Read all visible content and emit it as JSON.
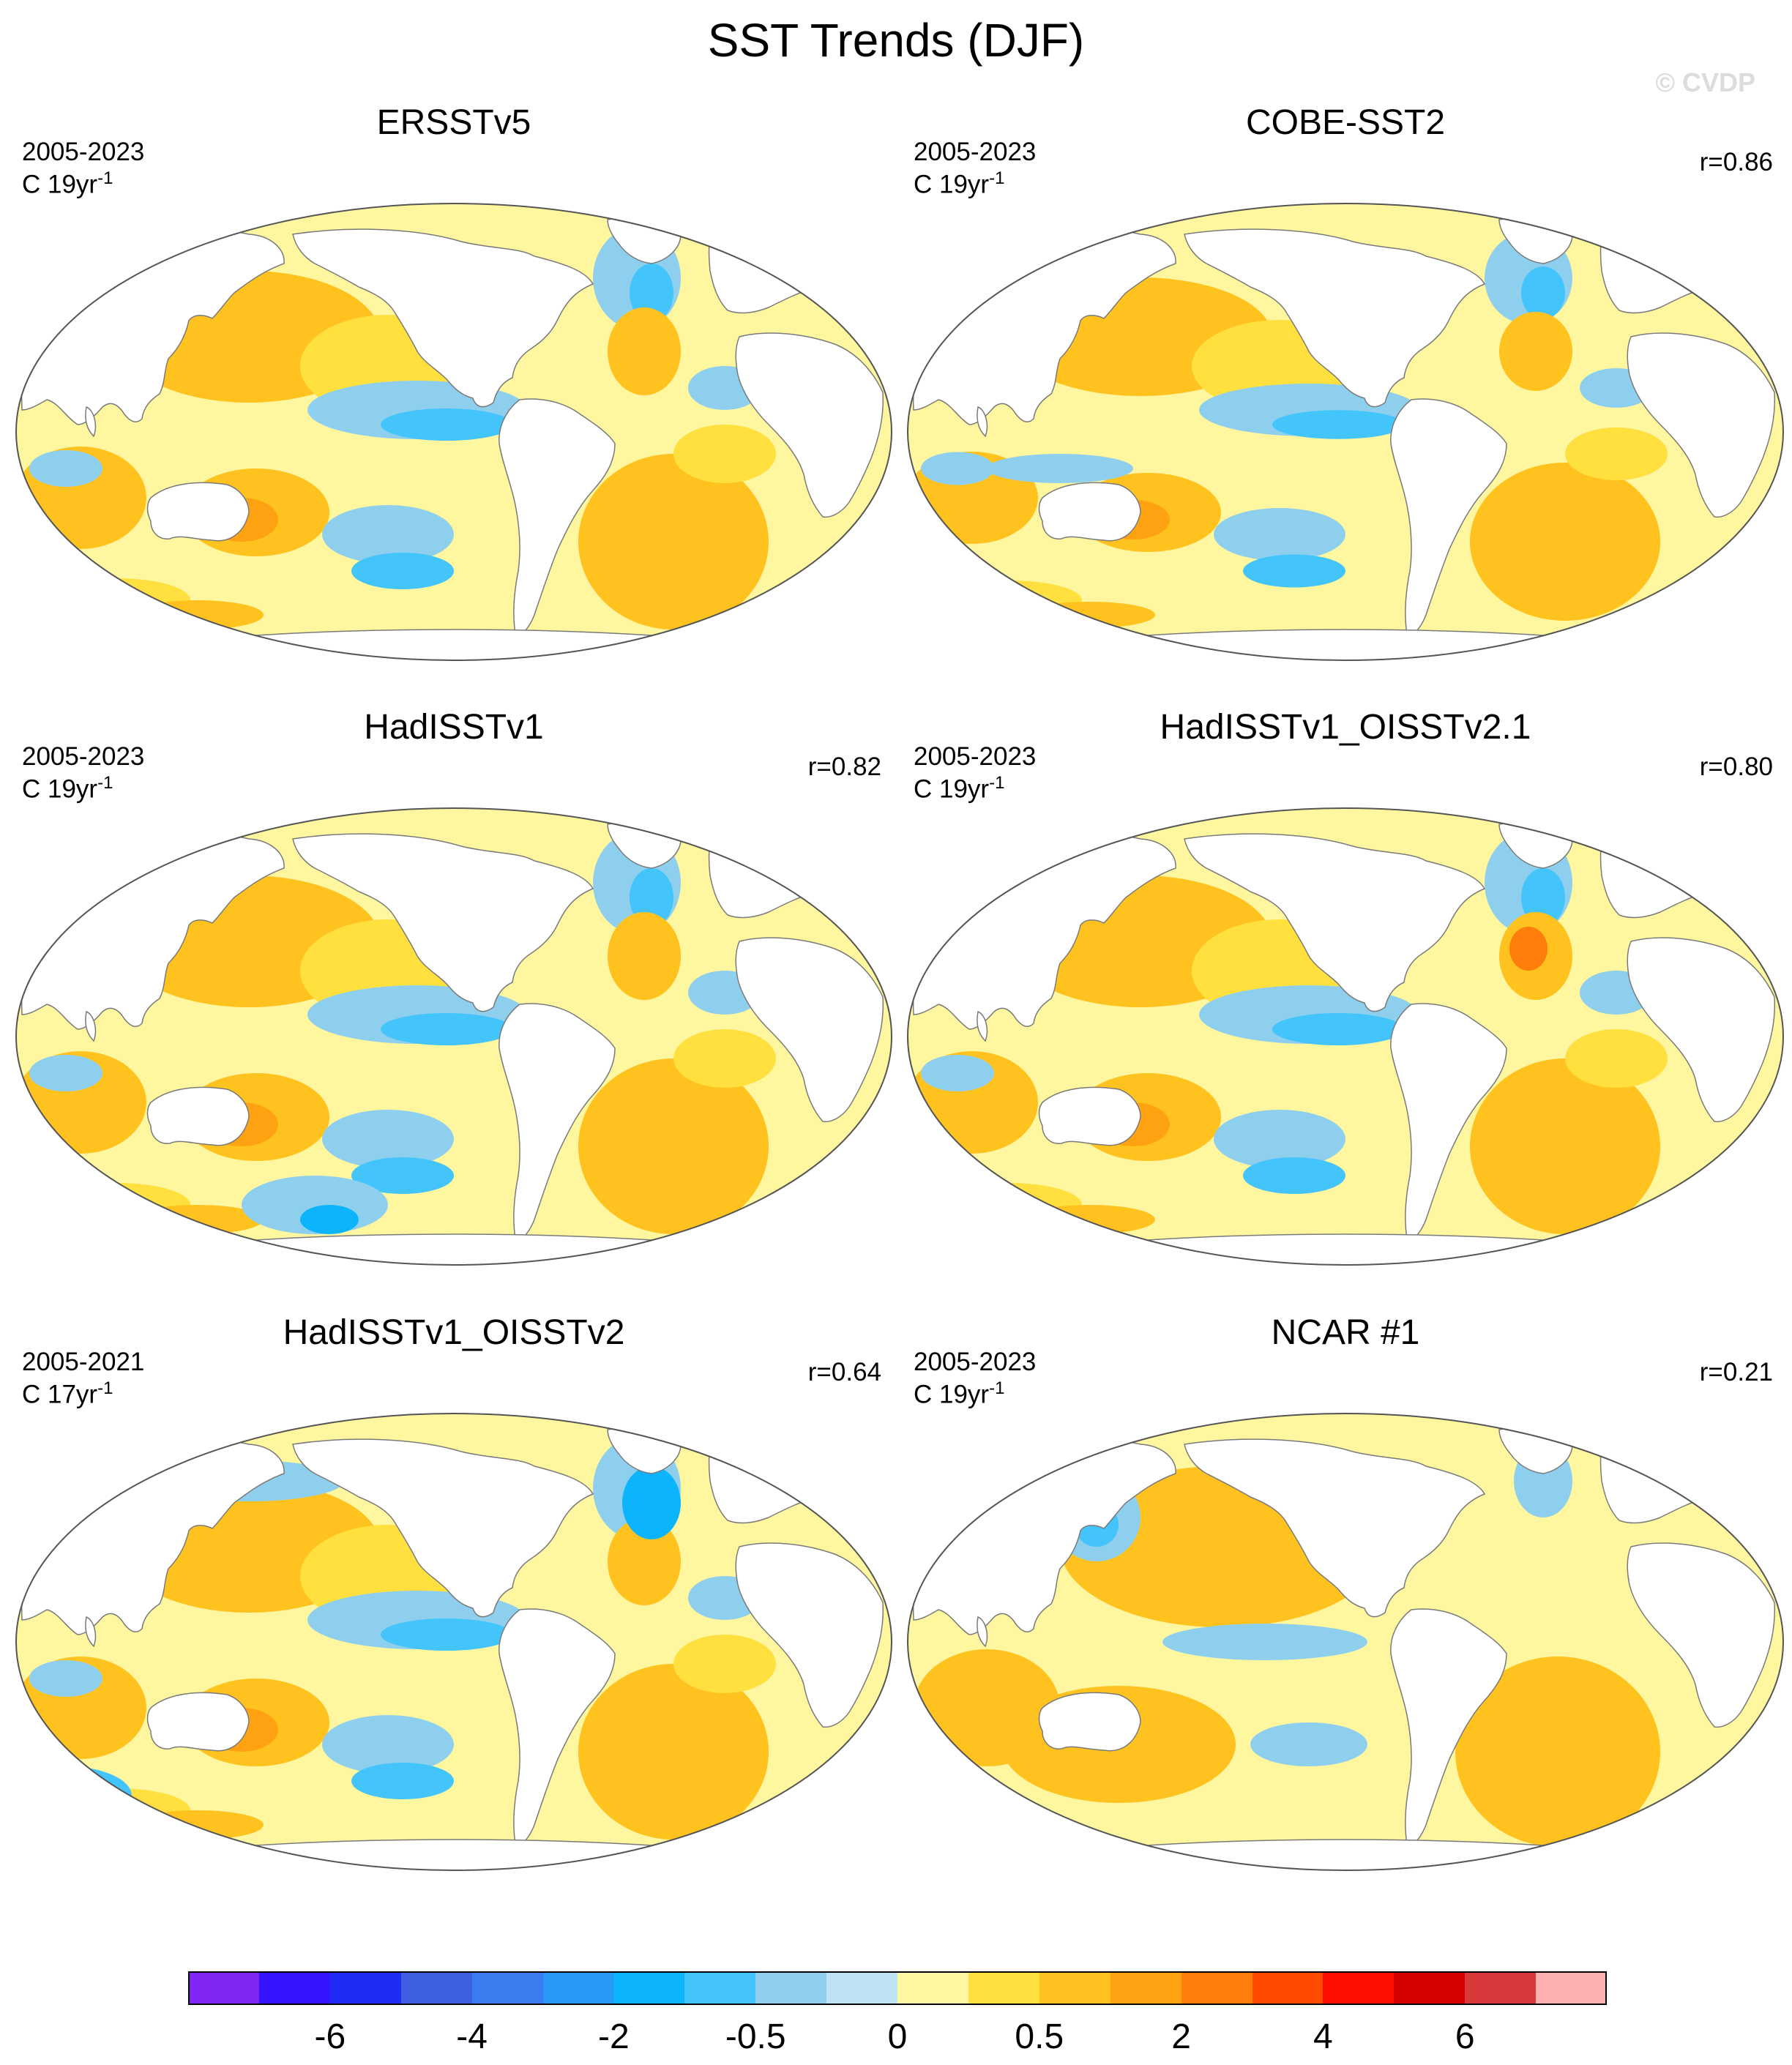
{
  "title": "SST Trends (DJF)",
  "watermark": "© CVDP",
  "panels": [
    {
      "title": "ERSSTv5",
      "period": "2005-2023",
      "units": "C 19yr",
      "units_exp": "-1",
      "corr": ""
    },
    {
      "title": "COBE-SST2",
      "period": "2005-2023",
      "units": "C 19yr",
      "units_exp": "-1",
      "corr": "r=0.86"
    },
    {
      "title": "HadISSTv1",
      "period": "2005-2023",
      "units": "C 19yr",
      "units_exp": "-1",
      "corr": "r=0.82"
    },
    {
      "title": "HadISSTv1_OISSTv2.1",
      "period": "2005-2023",
      "units": "C 19yr",
      "units_exp": "-1",
      "corr": "r=0.80"
    },
    {
      "title": "HadISSTv1_OISSTv2",
      "period": "2005-2021",
      "units": "C 17yr",
      "units_exp": "-1",
      "corr": "r=0.64"
    },
    {
      "title": "NCAR #1",
      "period": "2005-2023",
      "units": "C 19yr",
      "units_exp": "-1",
      "corr": "r=0.21"
    }
  ],
  "colorbar": {
    "colors": [
      "#8027f5",
      "#3714ff",
      "#1d2ef2",
      "#3d5fe0",
      "#3b7df0",
      "#2798f5",
      "#0cb5fb",
      "#43c4fb",
      "#8fcfee",
      "#bde3f5",
      "#fff6a0",
      "#ffe03e",
      "#ffc21e",
      "#ffa212",
      "#ff7d0a",
      "#ff4a00",
      "#ff0d00",
      "#d60000",
      "#d63a3a",
      "#ffb0b0"
    ],
    "labels": [
      {
        "text": "-6",
        "boundary": 2
      },
      {
        "text": "-4",
        "boundary": 4
      },
      {
        "text": "-2",
        "boundary": 6
      },
      {
        "text": "-0.5",
        "boundary": 8
      },
      {
        "text": "0",
        "boundary": 10
      },
      {
        "text": "0.5",
        "boundary": 12
      },
      {
        "text": "2",
        "boundary": 14
      },
      {
        "text": "4",
        "boundary": 16
      },
      {
        "text": "6",
        "boundary": 18
      }
    ]
  }
}
